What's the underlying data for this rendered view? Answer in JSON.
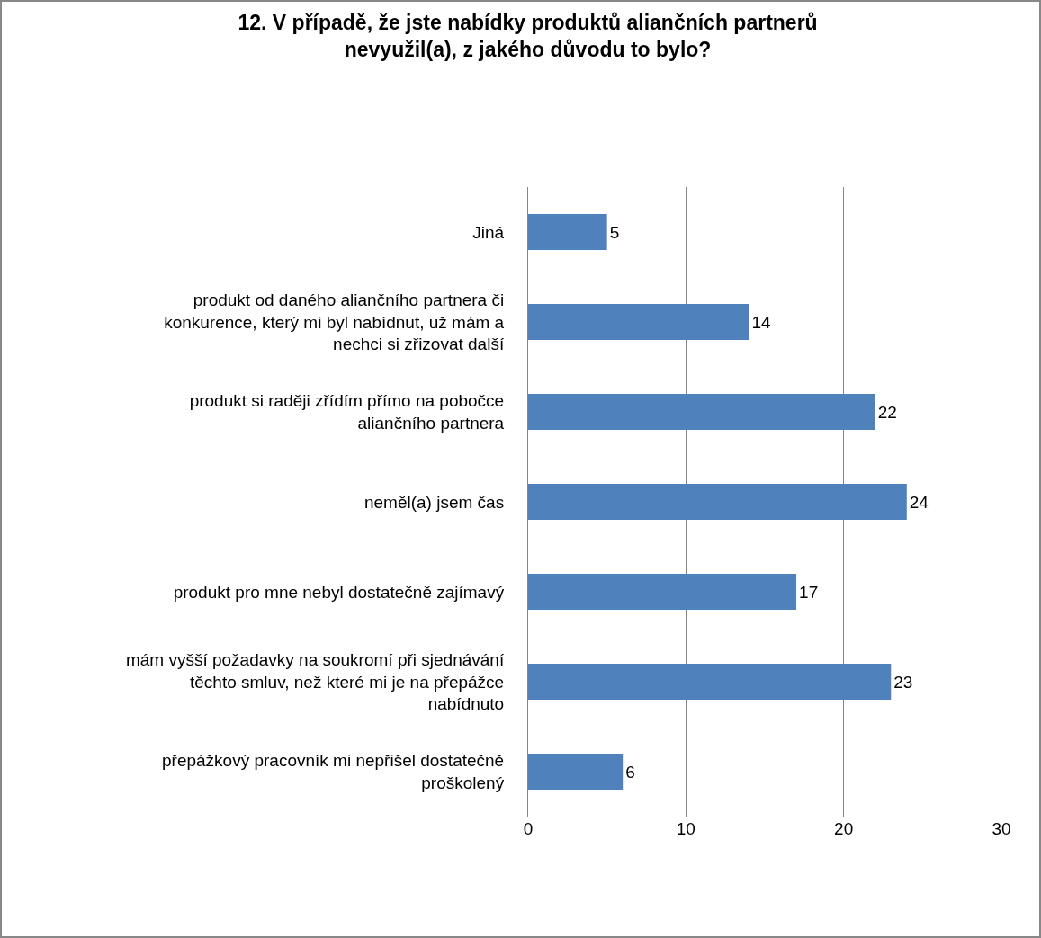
{
  "chart_data": {
    "type": "bar",
    "orientation": "horizontal",
    "title": "12. V případě, že jste nabídky produktů aliančních partnerů nevyužil(a), z jakého důvodu to bylo?",
    "categories": [
      "Jiná",
      "produkt od daného aliančního partnera či konkurence, který mi byl nabídnut, už mám a nechci si zřizovat další",
      "produkt si raději zřídím přímo na pobočce aliančního partnera",
      "neměl(a) jsem čas",
      "produkt pro mne nebyl dostatečně zajímavý",
      "mám vyšší požadavky na soukromí při sjednávání těchto smluv, než které mi je na přepážce nabídnuto",
      "přepážkový pracovník mi nepřišel dostatečně proškolený"
    ],
    "values": [
      5,
      14,
      22,
      24,
      17,
      23,
      6
    ],
    "color": "#4f81bd",
    "xlim": [
      0,
      30
    ],
    "xticks": [
      0,
      10,
      20,
      30
    ],
    "grid": "x",
    "data_labels": true
  }
}
